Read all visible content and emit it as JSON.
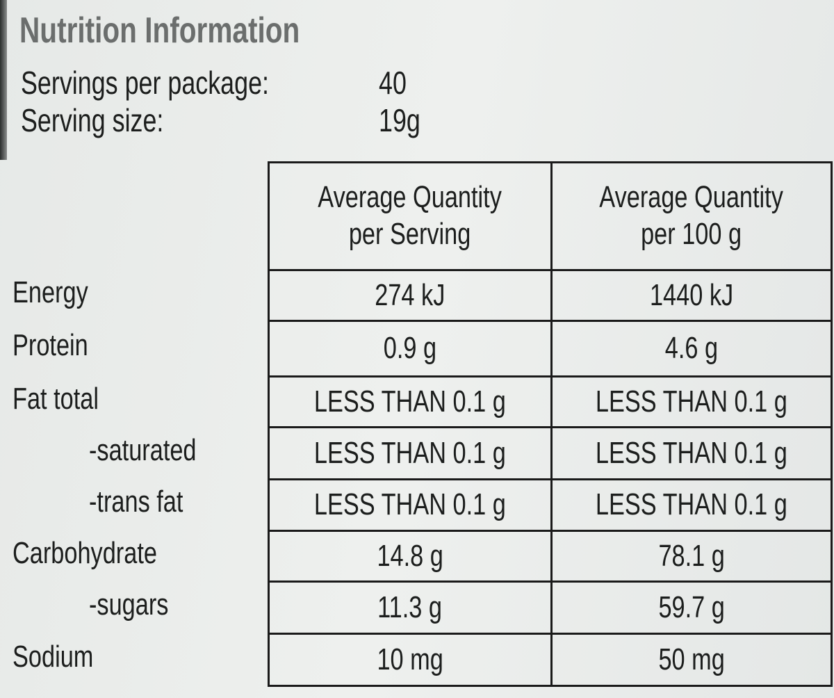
{
  "title": "Nutrition Information",
  "servings": [
    {
      "label": "Servings per package:",
      "value": "40"
    },
    {
      "label": "Serving size:",
      "value": "19g"
    }
  ],
  "table": {
    "header": [
      "Average Quantity\nper Serving",
      "Average Quantity\nper 100 g"
    ],
    "rows": [
      [
        "Energy",
        "274 kJ",
        "1440 kJ"
      ],
      [
        "Protein",
        "0.9 g",
        "4.6 g"
      ],
      [
        "Fat total",
        "LESS THAN 0.1 g",
        "LESS THAN 0.1 g"
      ],
      [
        "-saturated",
        "LESS THAN 0.1 g",
        "LESS THAN 0.1 g"
      ],
      [
        "-trans fat",
        "LESS THAN 0.1 g",
        "LESS THAN 0.1 g"
      ],
      [
        "Carbohydrate",
        "14.8 g",
        "78.1 g"
      ],
      [
        "-sugars",
        "11.3 g",
        "59.7 g"
      ],
      [
        "Sodium",
        "10 mg",
        "50 mg"
      ]
    ]
  }
}
